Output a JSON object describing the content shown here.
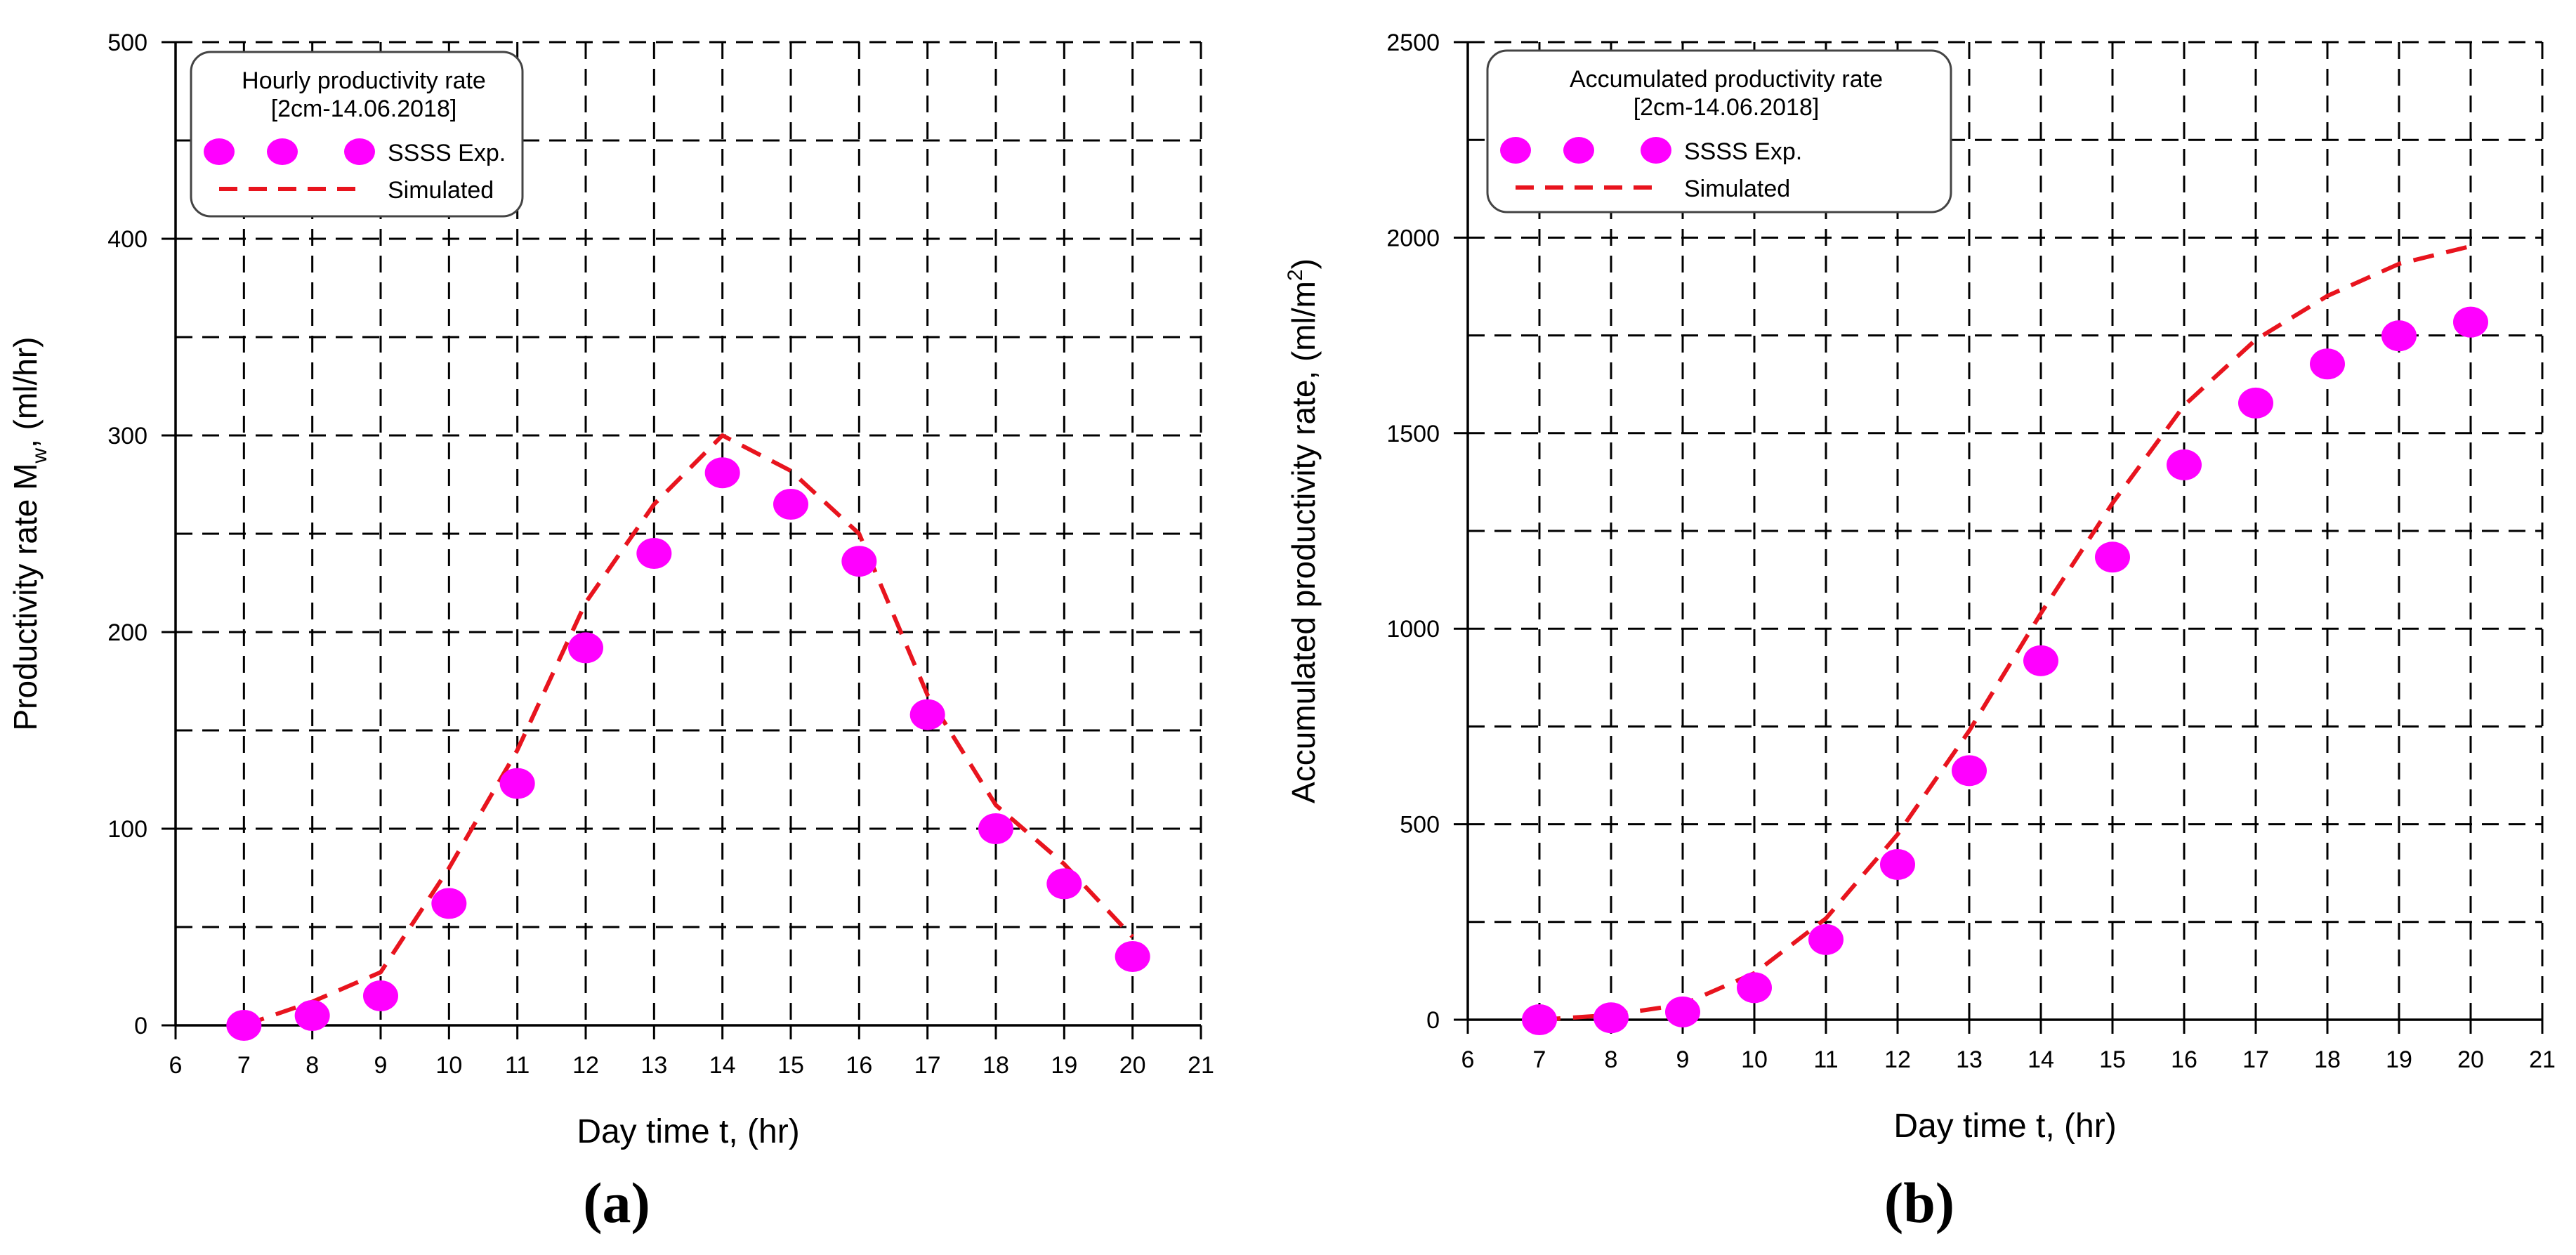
{
  "colors": {
    "marker": "#ff00ff",
    "simulated_line": "#e8141e",
    "grid": "#000000",
    "axis": "#000000",
    "text": "#000000"
  },
  "chart_data": [
    {
      "type": "scatter",
      "panel_label": "(a)",
      "xlabel": "Day time t, (hr)",
      "ylabel": "Productivity rate M",
      "ylabel_sub": "w",
      "ylabel_tail": ", (ml/hr)",
      "xlim": [
        6,
        21
      ],
      "ylim": [
        0,
        500
      ],
      "x_ticks": [
        6,
        7,
        8,
        9,
        10,
        11,
        12,
        13,
        14,
        15,
        16,
        17,
        18,
        19,
        20,
        21
      ],
      "y_ticks": [
        0,
        100,
        200,
        300,
        400,
        500
      ],
      "y_minor_gridlines": [
        50,
        150,
        250,
        350,
        450
      ],
      "grid": true,
      "legend": {
        "placement": "top-left",
        "title_line1": "Hourly productivity rate",
        "title_line2": "[2cm-14.06.2018]",
        "entries": [
          "SSSS Exp.",
          "Simulated"
        ]
      },
      "series": [
        {
          "name": "SSSS Exp.",
          "style": "markers",
          "x": [
            7,
            8,
            9,
            10,
            11,
            12,
            13,
            14,
            15,
            16,
            17,
            18,
            19,
            20
          ],
          "y": [
            0,
            5,
            15,
            62,
            123,
            192,
            240,
            281,
            265,
            236,
            158,
            100,
            72,
            35
          ]
        },
        {
          "name": "Simulated",
          "style": "dashed-line",
          "x": [
            7,
            8,
            9,
            10,
            11,
            12,
            13,
            14,
            15,
            16,
            17,
            18,
            19,
            20
          ],
          "y": [
            0,
            12,
            27,
            80,
            140,
            215,
            265,
            300,
            282,
            250,
            168,
            112,
            82,
            45
          ]
        }
      ]
    },
    {
      "type": "scatter",
      "panel_label": "(b)",
      "xlabel": "Day time t, (hr)",
      "ylabel": "Accumulated productivity rate, (ml/m",
      "ylabel_sup": "2",
      "ylabel_tail": ")",
      "xlim": [
        6,
        21
      ],
      "ylim": [
        0,
        2500
      ],
      "x_ticks": [
        6,
        7,
        8,
        9,
        10,
        11,
        12,
        13,
        14,
        15,
        16,
        17,
        18,
        19,
        20,
        21
      ],
      "y_ticks": [
        0,
        500,
        1000,
        1500,
        2000,
        2500
      ],
      "y_minor_gridlines": [
        250,
        750,
        1250,
        1750,
        2250
      ],
      "grid": true,
      "legend": {
        "placement": "top-left",
        "title_line1": "Accumulated productivity rate",
        "title_line2": "[2cm-14.06.2018]",
        "entries": [
          "SSSS Exp.",
          "Simulated"
        ]
      },
      "series": [
        {
          "name": "SSSS Exp.",
          "style": "markers",
          "x": [
            7,
            8,
            9,
            10,
            11,
            12,
            13,
            14,
            15,
            16,
            17,
            18,
            19,
            20
          ],
          "y": [
            0,
            5,
            20,
            82,
            205,
            397,
            637,
            918,
            1183,
            1419,
            1577,
            1677,
            1749,
            1784
          ]
        },
        {
          "name": "Simulated",
          "style": "dashed-line",
          "x": [
            7,
            8,
            9,
            10,
            11,
            12,
            13,
            14,
            15,
            16,
            17,
            18,
            19,
            20
          ],
          "y": [
            0,
            12,
            39,
            119,
            259,
            474,
            739,
            1039,
            1321,
            1571,
            1739,
            1851,
            1933,
            1978
          ]
        }
      ]
    }
  ]
}
